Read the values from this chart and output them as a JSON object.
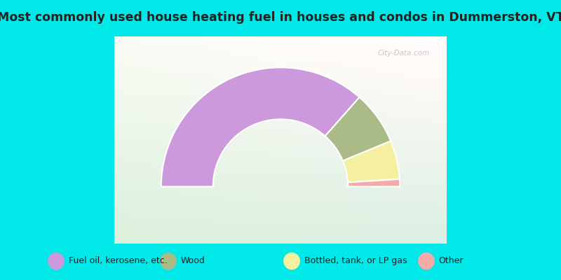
{
  "title": "Most commonly used house heating fuel in houses and condos in Dummerston, VT",
  "segments": [
    {
      "label": "Fuel oil, kerosene, etc.",
      "value": 73.0,
      "color": "#cc99dd"
    },
    {
      "label": "Wood",
      "value": 14.5,
      "color": "#aabb88"
    },
    {
      "label": "Bottled, tank, or LP gas",
      "value": 10.5,
      "color": "#f5f0a0"
    },
    {
      "label": "Other",
      "value": 2.0,
      "color": "#f5aaaa"
    }
  ],
  "bg_cyan": "#00e8e8",
  "bg_chart_top": "#f0f8f0",
  "bg_chart_bottom": "#c8eedd",
  "title_color": "#222222",
  "title_fontsize": 12.5,
  "legend_fontsize": 9,
  "watermark": "City-Data.com",
  "outer_r": 1.15,
  "inner_r": 0.65
}
